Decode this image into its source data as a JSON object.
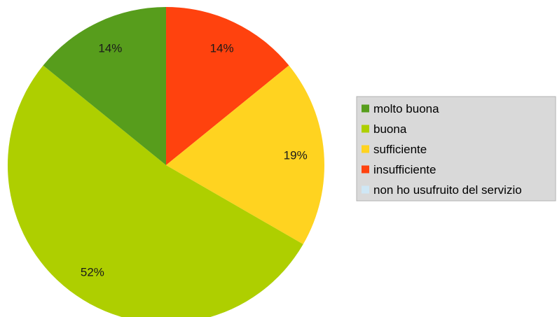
{
  "chart_data": {
    "type": "pie",
    "title": "",
    "categories": [
      "molto buona",
      "buona",
      "sufficiente",
      "insufficiente",
      "non ho usufruito del servizio"
    ],
    "values": [
      14,
      52,
      19,
      14,
      0
    ],
    "value_labels": [
      "14%",
      "52%",
      "19%",
      "14%",
      ""
    ],
    "colors": [
      "#579d1c",
      "#aecf00",
      "#ffd320",
      "#ff420e",
      "#cfe7f5"
    ],
    "legend": {
      "position": "right",
      "entries": [
        "molto buona",
        "buona",
        "sufficiente",
        "insufficiente",
        "non ho usufruito del servizio"
      ]
    }
  }
}
